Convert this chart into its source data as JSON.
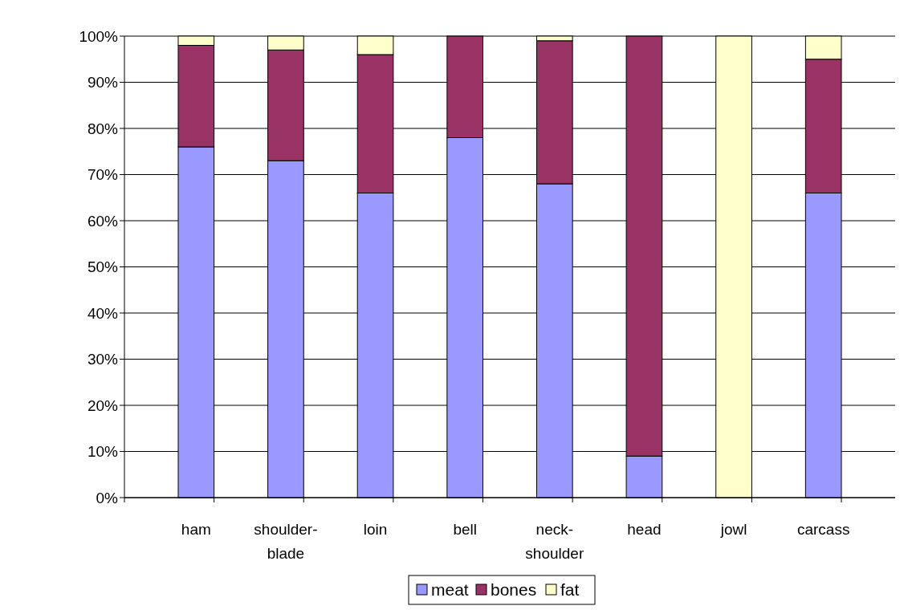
{
  "chart_data": {
    "type": "bar",
    "stacked": true,
    "categories": [
      "ham",
      "shoulder-blade",
      "loin",
      "bell",
      "neck-shoulder",
      "head",
      "jowl",
      "carcass"
    ],
    "series": [
      {
        "name": "meat",
        "color": "#9999ff",
        "values": [
          76,
          73,
          66,
          78,
          68,
          9,
          0,
          66
        ]
      },
      {
        "name": "bones",
        "color": "#993366",
        "values": [
          22,
          24,
          30,
          22,
          31,
          91,
          0,
          29
        ]
      },
      {
        "name": "fat",
        "color": "#ffffcc",
        "values": [
          2,
          3,
          4,
          0,
          1,
          0,
          100,
          5
        ]
      }
    ],
    "ylim": [
      0,
      100
    ],
    "yticks": [
      {
        "value": 0,
        "label": "0%"
      },
      {
        "value": 10,
        "label": "10%"
      },
      {
        "value": 20,
        "label": "20%"
      },
      {
        "value": 30,
        "label": "30%"
      },
      {
        "value": 40,
        "label": "40%"
      },
      {
        "value": 50,
        "label": "50%"
      },
      {
        "value": 60,
        "label": "60%"
      },
      {
        "value": 70,
        "label": "70%"
      },
      {
        "value": 80,
        "label": "80%"
      },
      {
        "value": 90,
        "label": "90%"
      },
      {
        "value": 100,
        "label": "100%"
      }
    ],
    "grid": "y",
    "legend": "bottom"
  }
}
